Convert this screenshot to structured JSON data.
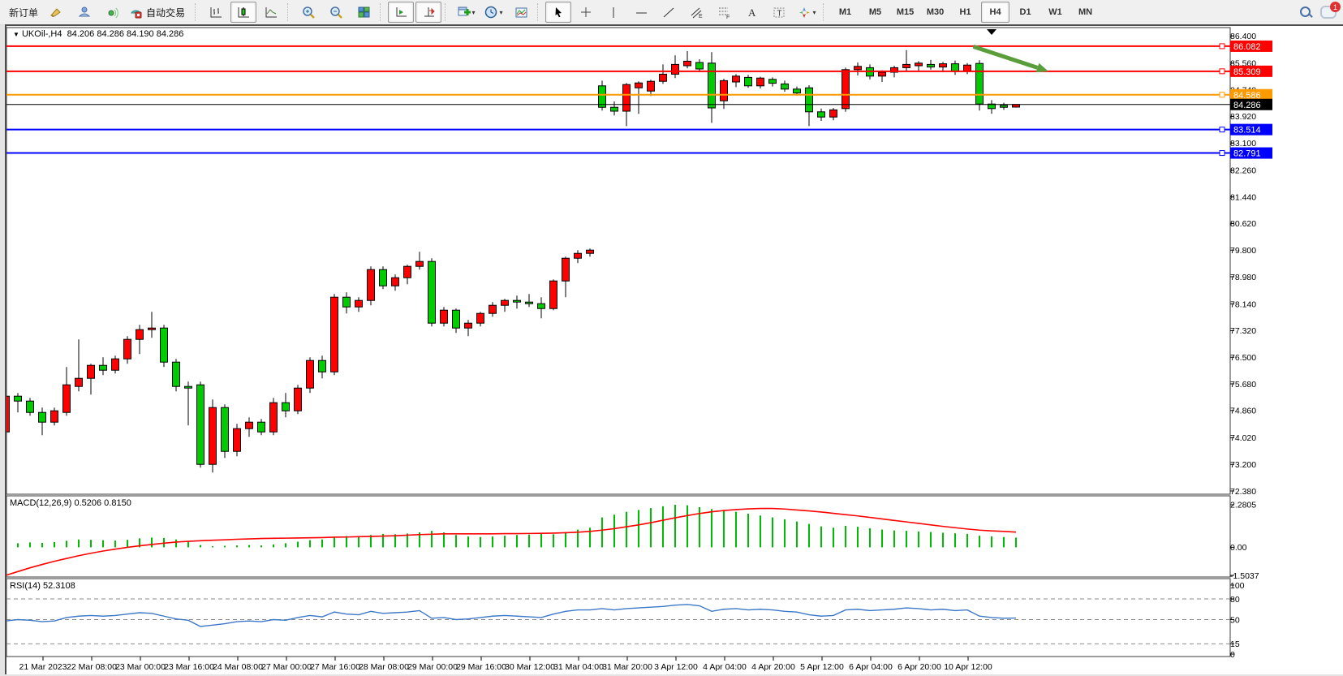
{
  "toolbar": {
    "new_order_label": "新订单",
    "autotrade_label": "自动交易",
    "notification_count": "1",
    "groups": [
      {
        "items": [
          {
            "name": "new-order-button",
            "type": "text",
            "label": "新订单"
          },
          {
            "name": "crayon-icon",
            "type": "icon",
            "icon": "crayon"
          },
          {
            "name": "publish-icon",
            "type": "icon",
            "icon": "publish"
          },
          {
            "name": "broadcast-icon",
            "type": "icon",
            "icon": "broadcast"
          },
          {
            "name": "autotrade-button",
            "type": "icontext",
            "icon": "autotrade",
            "label": "自动交易"
          }
        ]
      },
      {
        "items": [
          {
            "name": "bar-chart-button",
            "type": "icon",
            "icon": "barchart"
          },
          {
            "name": "candlestick-chart-button",
            "type": "icon",
            "icon": "candle",
            "pressed": true
          },
          {
            "name": "line-chart-button",
            "type": "icon",
            "icon": "linechart"
          }
        ]
      },
      {
        "items": [
          {
            "name": "zoom-in-button",
            "type": "icon",
            "icon": "zoomin"
          },
          {
            "name": "zoom-out-button",
            "type": "icon",
            "icon": "zoomout"
          },
          {
            "name": "tile-windows-button",
            "type": "icon",
            "icon": "tile"
          }
        ]
      },
      {
        "items": [
          {
            "name": "auto-scroll-button",
            "type": "icon",
            "icon": "autoscroll",
            "pressed": true
          },
          {
            "name": "chart-shift-button",
            "type": "icon",
            "icon": "chartshift",
            "pressed": true
          }
        ]
      },
      {
        "items": [
          {
            "name": "indicators-button",
            "type": "icon",
            "icon": "newchart",
            "dropdown": true
          },
          {
            "name": "periods-button",
            "type": "icon",
            "icon": "clock",
            "dropdown": true
          },
          {
            "name": "templates-button",
            "type": "icon",
            "icon": "template"
          }
        ]
      },
      {
        "items": [
          {
            "name": "cursor-button",
            "type": "icon",
            "icon": "cursor",
            "pressed": true
          },
          {
            "name": "crosshair-button",
            "type": "icon",
            "icon": "crosshair"
          },
          {
            "name": "vertical-line-button",
            "type": "icon",
            "icon": "vline"
          },
          {
            "name": "horizontal-line-button",
            "type": "icon",
            "icon": "hline"
          },
          {
            "name": "trendline-button",
            "type": "icon",
            "icon": "trend"
          },
          {
            "name": "equidistant-channel-button",
            "type": "icon",
            "icon": "channel"
          },
          {
            "name": "fibonacci-button",
            "type": "icon",
            "icon": "fibo"
          },
          {
            "name": "text-button",
            "type": "icon",
            "icon": "textA"
          },
          {
            "name": "text-label-button",
            "type": "icon",
            "icon": "labelT"
          },
          {
            "name": "arrows-button",
            "type": "icon",
            "icon": "arrows",
            "dropdown": true
          }
        ]
      },
      {
        "items": [
          {
            "name": "timeframe-m1-button",
            "type": "tf",
            "label": "M1"
          },
          {
            "name": "timeframe-m5-button",
            "type": "tf",
            "label": "M5"
          },
          {
            "name": "timeframe-m15-button",
            "type": "tf",
            "label": "M15"
          },
          {
            "name": "timeframe-m30-button",
            "type": "tf",
            "label": "M30"
          },
          {
            "name": "timeframe-h1-button",
            "type": "tf",
            "label": "H1"
          },
          {
            "name": "timeframe-h4-button",
            "type": "tf",
            "label": "H4",
            "pressed": true
          },
          {
            "name": "timeframe-d1-button",
            "type": "tf",
            "label": "D1"
          },
          {
            "name": "timeframe-w1-button",
            "type": "tf",
            "label": "W1"
          },
          {
            "name": "timeframe-mn-button",
            "type": "tf",
            "label": "MN"
          }
        ]
      }
    ]
  },
  "chart": {
    "title_symbol": "UKOil-,H4",
    "title_ohlc": "84.206 84.286 84.190 84.286",
    "macd_label": "MACD(12,26,9) 0.5206 0.8150",
    "rsi_label": "RSI(14) 52.3108"
  },
  "chart_data": {
    "type": "candlestick",
    "symbol": "UKOil-",
    "timeframe": "H4",
    "title_ohlc": [
      84.206,
      84.286,
      84.19,
      84.286
    ],
    "colors": {
      "bull": "#ff0000",
      "bear": "#00cc00",
      "outline": "#000000",
      "macd_hist": "#00bb00",
      "macd_signal": "#ff0000",
      "rsi_line": "#3c78c8",
      "level_red": "#ff0000",
      "level_orange": "#ff9900",
      "level_blue": "#0000ff",
      "current_price": "#000000",
      "arrow": "#5a9e3c"
    },
    "price_ticks": [
      "86.400",
      "85.560",
      "84.740",
      "83.920",
      "83.100",
      "82.260",
      "81.440",
      "80.620",
      "79.800",
      "78.980",
      "78.140",
      "77.320",
      "76.500",
      "75.680",
      "74.860",
      "74.020",
      "73.200",
      "72.380"
    ],
    "hlines": [
      {
        "price": 86.082,
        "label": "86.082",
        "color": "#ff0000",
        "width": 2
      },
      {
        "price": 85.309,
        "label": "85.309",
        "color": "#ff0000",
        "width": 2
      },
      {
        "price": 84.586,
        "label": "84.586",
        "color": "#ff9900",
        "width": 2
      },
      {
        "price": 84.286,
        "label": "84.286",
        "color": "#000000",
        "width": 1
      },
      {
        "price": 83.514,
        "label": "83.514",
        "color": "#0000ff",
        "width": 2
      },
      {
        "price": 82.791,
        "label": "82.791",
        "color": "#0000ff",
        "width": 2
      }
    ],
    "time_labels": [
      "21 Mar 2023",
      "22 Mar 08:00",
      "23 Mar 00:00",
      "23 Mar 16:00",
      "24 Mar 08:00",
      "27 Mar 00:00",
      "27 Mar 16:00",
      "28 Mar 08:00",
      "29 Mar 00:00",
      "29 Mar 16:00",
      "30 Mar 12:00",
      "31 Mar 04:00",
      "31 Mar 20:00",
      "3 Apr 12:00",
      "4 Apr 04:00",
      "4 Apr 20:00",
      "5 Apr 12:00",
      "6 Apr 04:00",
      "6 Apr 20:00",
      "10 Apr 12:00"
    ],
    "candles": [
      [
        74.2,
        75.45,
        74.0,
        75.3
      ],
      [
        75.3,
        75.4,
        74.8,
        75.15
      ],
      [
        75.15,
        75.25,
        74.7,
        74.8
      ],
      [
        74.8,
        74.95,
        74.1,
        74.5
      ],
      [
        74.5,
        74.95,
        74.4,
        74.85
      ],
      [
        74.8,
        76.2,
        74.7,
        75.65
      ],
      [
        75.6,
        77.05,
        75.45,
        75.85
      ],
      [
        75.85,
        76.3,
        75.35,
        76.25
      ],
      [
        76.25,
        76.5,
        75.95,
        76.1
      ],
      [
        76.1,
        76.55,
        76.0,
        76.45
      ],
      [
        76.45,
        77.15,
        76.3,
        77.05
      ],
      [
        77.05,
        77.5,
        76.6,
        77.35
      ],
      [
        77.35,
        77.9,
        77.1,
        77.4
      ],
      [
        77.4,
        77.5,
        76.2,
        76.35
      ],
      [
        76.35,
        76.45,
        75.45,
        75.6
      ],
      [
        75.6,
        75.75,
        74.4,
        75.55
      ],
      [
        75.65,
        75.75,
        73.1,
        73.2
      ],
      [
        73.2,
        75.2,
        72.95,
        74.95
      ],
      [
        74.95,
        75.05,
        73.4,
        73.6
      ],
      [
        73.6,
        74.45,
        73.45,
        74.3
      ],
      [
        74.3,
        74.65,
        74.05,
        74.5
      ],
      [
        74.5,
        74.6,
        74.1,
        74.2
      ],
      [
        74.2,
        75.25,
        74.1,
        75.1
      ],
      [
        75.1,
        75.4,
        74.65,
        74.85
      ],
      [
        74.85,
        75.65,
        74.75,
        75.55
      ],
      [
        75.55,
        76.5,
        75.4,
        76.4
      ],
      [
        76.4,
        76.55,
        75.85,
        76.05
      ],
      [
        76.05,
        78.45,
        75.95,
        78.35
      ],
      [
        78.35,
        78.5,
        77.85,
        78.05
      ],
      [
        78.05,
        78.35,
        77.9,
        78.25
      ],
      [
        78.25,
        79.3,
        78.1,
        79.2
      ],
      [
        79.2,
        79.3,
        78.6,
        78.7
      ],
      [
        78.7,
        79.05,
        78.55,
        78.95
      ],
      [
        78.95,
        79.35,
        78.75,
        79.3
      ],
      [
        79.3,
        79.75,
        79.2,
        79.45
      ],
      [
        79.45,
        79.55,
        77.45,
        77.55
      ],
      [
        77.55,
        78.05,
        77.45,
        77.95
      ],
      [
        77.95,
        78.0,
        77.25,
        77.4
      ],
      [
        77.4,
        77.65,
        77.15,
        77.55
      ],
      [
        77.55,
        77.9,
        77.45,
        77.85
      ],
      [
        77.85,
        78.2,
        77.75,
        78.1
      ],
      [
        78.1,
        78.3,
        77.9,
        78.25
      ],
      [
        78.25,
        78.4,
        78.0,
        78.2
      ],
      [
        78.2,
        78.45,
        78.05,
        78.15
      ],
      [
        78.15,
        78.35,
        77.7,
        78.0
      ],
      [
        78.0,
        78.9,
        77.95,
        78.85
      ],
      [
        78.85,
        79.6,
        78.35,
        79.55
      ],
      [
        79.55,
        79.8,
        79.4,
        79.7
      ],
      [
        79.7,
        79.85,
        79.6,
        79.8
      ],
      [
        84.86,
        85.02,
        84.1,
        84.2
      ],
      [
        84.2,
        84.38,
        83.95,
        84.08
      ],
      [
        84.08,
        84.95,
        83.62,
        84.9
      ],
      [
        84.8,
        85.0,
        84.0,
        84.95
      ],
      [
        84.7,
        85.05,
        84.55,
        85.0
      ],
      [
        85.0,
        85.52,
        84.92,
        85.22
      ],
      [
        85.22,
        85.8,
        85.1,
        85.52
      ],
      [
        85.48,
        85.93,
        85.4,
        85.62
      ],
      [
        85.58,
        85.68,
        85.28,
        85.38
      ],
      [
        85.56,
        85.9,
        83.72,
        84.18
      ],
      [
        84.4,
        85.08,
        84.15,
        85.02
      ],
      [
        84.98,
        85.22,
        84.82,
        85.16
      ],
      [
        85.12,
        85.2,
        84.8,
        84.86
      ],
      [
        84.86,
        85.14,
        84.78,
        85.1
      ],
      [
        85.06,
        85.12,
        84.84,
        84.94
      ],
      [
        84.92,
        85.02,
        84.68,
        84.76
      ],
      [
        84.76,
        84.84,
        84.56,
        84.64
      ],
      [
        84.8,
        84.88,
        83.62,
        84.06
      ],
      [
        84.06,
        84.16,
        83.78,
        83.9
      ],
      [
        83.9,
        84.18,
        83.8,
        84.12
      ],
      [
        84.16,
        85.42,
        84.06,
        85.36
      ],
      [
        85.36,
        85.58,
        85.18,
        85.46
      ],
      [
        85.42,
        85.52,
        85.06,
        85.16
      ],
      [
        85.16,
        85.34,
        84.98,
        85.28
      ],
      [
        85.28,
        85.48,
        85.12,
        85.42
      ],
      [
        85.42,
        85.96,
        85.32,
        85.52
      ],
      [
        85.48,
        85.62,
        85.3,
        85.56
      ],
      [
        85.52,
        85.66,
        85.36,
        85.44
      ],
      [
        85.44,
        85.6,
        85.28,
        85.54
      ],
      [
        85.54,
        85.64,
        85.2,
        85.3
      ],
      [
        85.3,
        85.56,
        85.22,
        85.5
      ],
      [
        85.55,
        85.65,
        84.1,
        84.3
      ],
      [
        84.3,
        84.42,
        84.0,
        84.16
      ],
      [
        84.26,
        84.34,
        84.12,
        84.2
      ],
      [
        84.206,
        84.286,
        84.19,
        84.286
      ]
    ],
    "annotation_arrow": {
      "from_price": 86.07,
      "to_price": 85.32,
      "from_index": 79.5,
      "to_index": 85.7,
      "color": "#5a9e3c"
    },
    "macd": {
      "label": "MACD(12,26,9) 0.5206 0.8150",
      "scale_labels": [
        "2.2805",
        "0.00",
        "-1.5037"
      ],
      "scale_values": [
        2.2805,
        0.0,
        -1.5037
      ],
      "hist": [
        0.18,
        0.22,
        0.26,
        0.24,
        0.28,
        0.35,
        0.42,
        0.4,
        0.38,
        0.36,
        0.4,
        0.48,
        0.52,
        0.5,
        0.42,
        0.3,
        0.12,
        0.06,
        0.08,
        0.1,
        0.12,
        0.1,
        0.15,
        0.22,
        0.3,
        0.38,
        0.42,
        0.55,
        0.6,
        0.58,
        0.66,
        0.72,
        0.7,
        0.74,
        0.8,
        0.88,
        0.8,
        0.66,
        0.58,
        0.55,
        0.58,
        0.62,
        0.66,
        0.68,
        0.72,
        0.7,
        0.82,
        0.95,
        1.05,
        1.6,
        1.75,
        1.9,
        2.0,
        2.1,
        2.2,
        2.2805,
        2.25,
        2.15,
        2.05,
        1.95,
        1.9,
        1.8,
        1.7,
        1.6,
        1.5,
        1.38,
        1.25,
        1.12,
        1.05,
        1.15,
        1.1,
        1.02,
        0.95,
        0.9,
        0.88,
        0.85,
        0.82,
        0.78,
        0.75,
        0.72,
        0.62,
        0.58,
        0.55,
        0.5206
      ],
      "signal": [
        -1.5037,
        -1.3,
        -1.1,
        -0.92,
        -0.75,
        -0.6,
        -0.45,
        -0.32,
        -0.2,
        -0.1,
        0.0,
        0.08,
        0.15,
        0.22,
        0.28,
        0.32,
        0.35,
        0.38,
        0.4,
        0.43,
        0.45,
        0.47,
        0.48,
        0.49,
        0.5,
        0.51,
        0.52,
        0.54,
        0.55,
        0.57,
        0.58,
        0.6,
        0.62,
        0.65,
        0.68,
        0.7,
        0.72,
        0.72,
        0.72,
        0.72,
        0.72,
        0.73,
        0.73,
        0.74,
        0.75,
        0.76,
        0.78,
        0.81,
        0.85,
        0.92,
        1.0,
        1.1,
        1.2,
        1.32,
        1.45,
        1.58,
        1.7,
        1.81,
        1.9,
        1.97,
        2.02,
        2.06,
        2.08,
        2.08,
        2.05,
        2.0,
        1.95,
        1.89,
        1.82,
        1.75,
        1.68,
        1.6,
        1.52,
        1.44,
        1.36,
        1.28,
        1.2,
        1.12,
        1.05,
        0.98,
        0.92,
        0.88,
        0.85,
        0.815
      ]
    },
    "rsi": {
      "label": "RSI(14) 52.3108",
      "scale_labels": [
        "100",
        "80",
        "50",
        "15",
        "0"
      ],
      "scale_values": [
        100,
        80,
        50,
        15,
        0
      ],
      "dashed_levels": [
        80,
        50,
        15
      ],
      "values": [
        48,
        50,
        49,
        47,
        48,
        53,
        55,
        56,
        55,
        56,
        58,
        60,
        59,
        55,
        51,
        49,
        40,
        42,
        44,
        47,
        48,
        47,
        50,
        49,
        53,
        56,
        54,
        61,
        58,
        57,
        62,
        59,
        60,
        61,
        63,
        52,
        53,
        50,
        51,
        53,
        55,
        56,
        55,
        54,
        53,
        58,
        62,
        64,
        64,
        66,
        64,
        66,
        67,
        68,
        69,
        71,
        72,
        70,
        62,
        65,
        66,
        64,
        65,
        64,
        62,
        61,
        57,
        55,
        56,
        64,
        65,
        63,
        64,
        65,
        67,
        66,
        64,
        65,
        63,
        64,
        55,
        53,
        52,
        52.31
      ]
    }
  }
}
